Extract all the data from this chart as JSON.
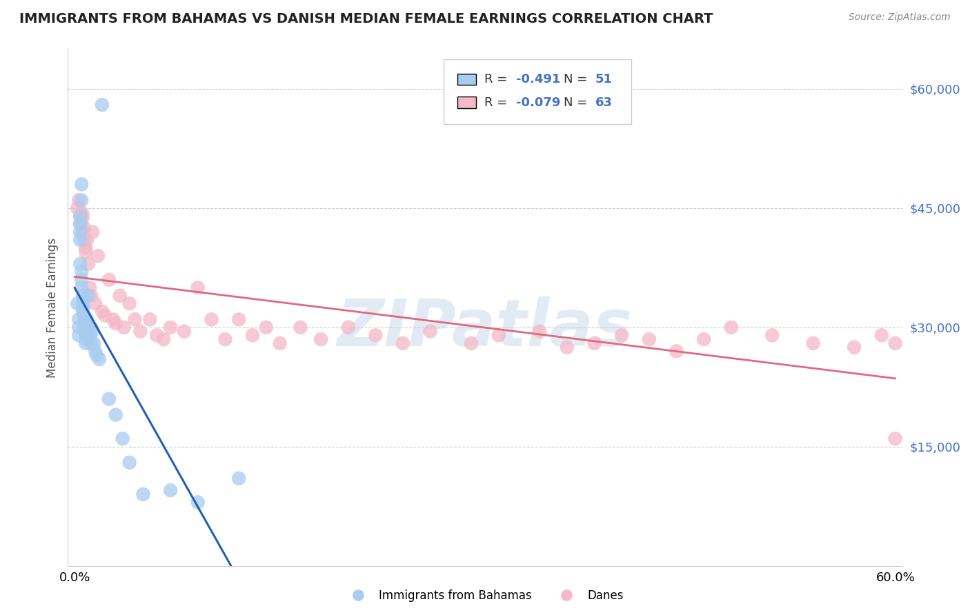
{
  "title": "IMMIGRANTS FROM BAHAMAS VS DANISH MEDIAN FEMALE EARNINGS CORRELATION CHART",
  "source": "Source: ZipAtlas.com",
  "ylabel": "Median Female Earnings",
  "y_ticks": [
    0,
    15000,
    30000,
    45000,
    60000
  ],
  "y_tick_labels": [
    "",
    "$15,000",
    "$30,000",
    "$45,000",
    "$60,000"
  ],
  "x_range": [
    0.0,
    0.6
  ],
  "y_range": [
    0,
    65000
  ],
  "color_blue": "#A8CCF0",
  "color_pink": "#F4B8C8",
  "color_line_blue": "#2060B0",
  "color_line_pink": "#E06880",
  "watermark": "ZIPatlas",
  "blue_scatter_x": [
    0.002,
    0.003,
    0.003,
    0.003,
    0.004,
    0.004,
    0.004,
    0.004,
    0.004,
    0.005,
    0.005,
    0.005,
    0.005,
    0.005,
    0.006,
    0.006,
    0.006,
    0.006,
    0.006,
    0.007,
    0.007,
    0.007,
    0.007,
    0.008,
    0.008,
    0.008,
    0.008,
    0.009,
    0.009,
    0.009,
    0.01,
    0.01,
    0.01,
    0.011,
    0.011,
    0.012,
    0.012,
    0.013,
    0.014,
    0.015,
    0.016,
    0.018,
    0.02,
    0.025,
    0.03,
    0.035,
    0.04,
    0.05,
    0.07,
    0.09,
    0.12
  ],
  "blue_scatter_y": [
    33000,
    31000,
    30000,
    29000,
    44000,
    43000,
    42000,
    41000,
    38000,
    48000,
    46000,
    37000,
    36000,
    35000,
    34000,
    33500,
    33000,
    32500,
    32000,
    31500,
    31000,
    30500,
    30000,
    29500,
    29000,
    28500,
    28000,
    31000,
    30000,
    29000,
    34000,
    30000,
    28500,
    30000,
    29000,
    30000,
    28000,
    29500,
    28000,
    27000,
    26500,
    26000,
    58000,
    21000,
    19000,
    16000,
    13000,
    9000,
    9500,
    8000,
    11000
  ],
  "pink_scatter_x": [
    0.002,
    0.003,
    0.004,
    0.004,
    0.005,
    0.005,
    0.006,
    0.006,
    0.007,
    0.007,
    0.008,
    0.008,
    0.009,
    0.01,
    0.011,
    0.012,
    0.013,
    0.015,
    0.017,
    0.02,
    0.022,
    0.025,
    0.028,
    0.03,
    0.033,
    0.036,
    0.04,
    0.044,
    0.048,
    0.055,
    0.06,
    0.065,
    0.07,
    0.08,
    0.09,
    0.1,
    0.11,
    0.12,
    0.13,
    0.14,
    0.15,
    0.165,
    0.18,
    0.2,
    0.22,
    0.24,
    0.26,
    0.29,
    0.31,
    0.34,
    0.36,
    0.38,
    0.4,
    0.42,
    0.44,
    0.46,
    0.48,
    0.51,
    0.54,
    0.57,
    0.59,
    0.6,
    0.6
  ],
  "pink_scatter_y": [
    45000,
    46000,
    44000,
    43000,
    44500,
    43500,
    44000,
    42000,
    42500,
    41000,
    40000,
    39500,
    41000,
    38000,
    35000,
    34000,
    42000,
    33000,
    39000,
    32000,
    31500,
    36000,
    31000,
    30500,
    34000,
    30000,
    33000,
    31000,
    29500,
    31000,
    29000,
    28500,
    30000,
    29500,
    35000,
    31000,
    28500,
    31000,
    29000,
    30000,
    28000,
    30000,
    28500,
    30000,
    29000,
    28000,
    29500,
    28000,
    29000,
    29500,
    27500,
    28000,
    29000,
    28500,
    27000,
    28500,
    30000,
    29000,
    28000,
    27500,
    29000,
    28000,
    16000
  ]
}
